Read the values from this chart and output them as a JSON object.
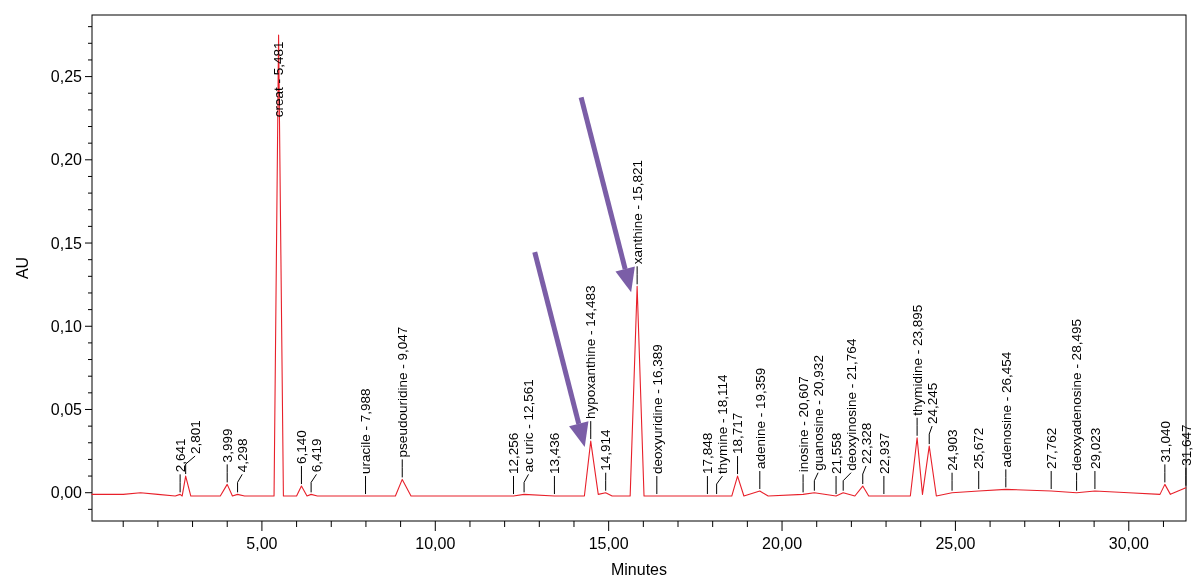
{
  "chart_data": {
    "type": "line",
    "xlabel": "Minutes",
    "ylabel": "AU",
    "xlim": [
      0.1,
      31.65
    ],
    "ylim": [
      -0.017,
      0.287
    ],
    "xticks": [
      {
        "value": 1,
        "label": null
      },
      {
        "value": 2,
        "label": null
      },
      {
        "value": 3,
        "label": null
      },
      {
        "value": 4,
        "label": null
      },
      {
        "value": 5,
        "label": "5,00"
      },
      {
        "value": 6,
        "label": null
      },
      {
        "value": 7,
        "label": null
      },
      {
        "value": 8,
        "label": null
      },
      {
        "value": 9,
        "label": null
      },
      {
        "value": 10,
        "label": "10,00"
      },
      {
        "value": 11,
        "label": null
      },
      {
        "value": 12,
        "label": null
      },
      {
        "value": 13,
        "label": null
      },
      {
        "value": 14,
        "label": null
      },
      {
        "value": 15,
        "label": "15,00"
      },
      {
        "value": 16,
        "label": null
      },
      {
        "value": 17,
        "label": null
      },
      {
        "value": 18,
        "label": null
      },
      {
        "value": 19,
        "label": null
      },
      {
        "value": 20,
        "label": "20,00"
      },
      {
        "value": 21,
        "label": null
      },
      {
        "value": 22,
        "label": null
      },
      {
        "value": 23,
        "label": null
      },
      {
        "value": 24,
        "label": null
      },
      {
        "value": 25,
        "label": "25,00"
      },
      {
        "value": 26,
        "label": null
      },
      {
        "value": 27,
        "label": null
      },
      {
        "value": 28,
        "label": null
      },
      {
        "value": 29,
        "label": null
      },
      {
        "value": 30,
        "label": "30,00"
      },
      {
        "value": 31,
        "label": null
      }
    ],
    "yticks": [
      {
        "value": -0.01,
        "label": null
      },
      {
        "value": 0,
        "label": "0,00"
      },
      {
        "value": 0.01,
        "label": null
      },
      {
        "value": 0.02,
        "label": null
      },
      {
        "value": 0.03,
        "label": null
      },
      {
        "value": 0.04,
        "label": null
      },
      {
        "value": 0.05,
        "label": "0,05"
      },
      {
        "value": 0.06,
        "label": null
      },
      {
        "value": 0.07,
        "label": null
      },
      {
        "value": 0.08,
        "label": null
      },
      {
        "value": 0.09,
        "label": null
      },
      {
        "value": 0.1,
        "label": "0,10"
      },
      {
        "value": 0.11,
        "label": null
      },
      {
        "value": 0.12,
        "label": null
      },
      {
        "value": 0.13,
        "label": null
      },
      {
        "value": 0.14,
        "label": null
      },
      {
        "value": 0.15,
        "label": "0,15"
      },
      {
        "value": 0.16,
        "label": null
      },
      {
        "value": 0.17,
        "label": null
      },
      {
        "value": 0.18,
        "label": null
      },
      {
        "value": 0.19,
        "label": null
      },
      {
        "value": 0.2,
        "label": "0,20"
      },
      {
        "value": 0.21,
        "label": null
      },
      {
        "value": 0.22,
        "label": null
      },
      {
        "value": 0.23,
        "label": null
      },
      {
        "value": 0.24,
        "label": null
      },
      {
        "value": 0.25,
        "label": "0,25"
      },
      {
        "value": 0.26,
        "label": null
      },
      {
        "value": 0.27,
        "label": null
      },
      {
        "value": 0.28,
        "label": null
      }
    ],
    "grid": false,
    "marker": "none",
    "line_style": "solid",
    "series": [
      {
        "color": "#e8202a",
        "x": [
          0.1,
          1.0,
          1.5,
          2.0,
          2.5,
          2.641,
          2.7,
          2.801,
          2.95,
          3.8,
          3.999,
          4.15,
          4.298,
          4.5,
          5.35,
          5.481,
          5.62,
          6.0,
          6.14,
          6.3,
          6.419,
          6.6,
          7.988,
          8.85,
          9.047,
          9.3,
          12.256,
          12.561,
          13.436,
          14.3,
          14.483,
          14.7,
          14.914,
          15.1,
          15.62,
          15.821,
          16.02,
          16.389,
          17.848,
          18.114,
          18.55,
          18.717,
          18.9,
          19.359,
          19.6,
          20.607,
          20.932,
          21.558,
          21.764,
          22.1,
          22.328,
          22.5,
          22.937,
          23.7,
          23.895,
          24.05,
          24.245,
          24.45,
          24.903,
          25.672,
          26.454,
          27.762,
          28.495,
          29.023,
          30.0,
          30.9,
          31.04,
          31.2,
          31.647
        ],
        "values": [
          -0.001,
          -0.001,
          0.0,
          -0.001,
          -0.002,
          -0.001,
          -0.002,
          0.01,
          -0.002,
          -0.002,
          0.005,
          -0.002,
          -0.001,
          -0.002,
          -0.002,
          0.275,
          -0.002,
          -0.002,
          0.004,
          -0.002,
          -0.001,
          -0.002,
          -0.002,
          -0.002,
          0.008,
          -0.002,
          -0.002,
          -0.001,
          -0.002,
          -0.002,
          0.031,
          -0.001,
          0.0,
          -0.002,
          -0.002,
          0.124,
          -0.002,
          -0.002,
          -0.002,
          -0.002,
          -0.002,
          0.01,
          -0.002,
          0.001,
          -0.002,
          -0.001,
          0.0,
          -0.002,
          0.0,
          -0.002,
          0.004,
          -0.002,
          -0.002,
          -0.002,
          0.033,
          -0.001,
          0.028,
          -0.002,
          0.0,
          0.001,
          0.002,
          0.001,
          0.0,
          0.001,
          0.0,
          -0.001,
          0.005,
          -0.001,
          0.003
        ]
      }
    ],
    "annotations": [
      {
        "text": "2,641",
        "x": 2.641,
        "y": -0.001
      },
      {
        "text": "2,801",
        "x": 2.801,
        "y": 0.01
      },
      {
        "text": "3,999",
        "x": 3.999,
        "y": 0.005
      },
      {
        "text": "4,298",
        "x": 4.298,
        "y": -0.001
      },
      {
        "text": "creat - 5,481",
        "x": 5.481,
        "y": 0.275
      },
      {
        "text": "6,140",
        "x": 6.14,
        "y": 0.004
      },
      {
        "text": "6,419",
        "x": 6.419,
        "y": -0.001
      },
      {
        "text": "uracile - 7,988",
        "x": 7.988,
        "y": -0.002
      },
      {
        "text": "pseudouridine - 9,047",
        "x": 9.047,
        "y": 0.008
      },
      {
        "text": "12,256",
        "x": 12.256,
        "y": -0.002
      },
      {
        "text": "ac uric - 12,561",
        "x": 12.561,
        "y": -0.001
      },
      {
        "text": "13,436",
        "x": 13.436,
        "y": -0.002
      },
      {
        "text": "hypoxanthine - 14,483",
        "x": 14.483,
        "y": 0.031
      },
      {
        "text": "14,914",
        "x": 14.914,
        "y": 0.0
      },
      {
        "text": "xanthine - 15,821",
        "x": 15.821,
        "y": 0.124
      },
      {
        "text": "deoxyuridine - 16,389",
        "x": 16.389,
        "y": -0.002
      },
      {
        "text": "17,848",
        "x": 17.848,
        "y": -0.002
      },
      {
        "text": "thymine - 18,114",
        "x": 18.114,
        "y": -0.002
      },
      {
        "text": "18,717",
        "x": 18.717,
        "y": 0.01
      },
      {
        "text": "adenine - 19,359",
        "x": 19.359,
        "y": 0.001
      },
      {
        "text": "inosine - 20,607",
        "x": 20.607,
        "y": -0.001
      },
      {
        "text": "guanosine - 20,932",
        "x": 20.932,
        "y": 0.0
      },
      {
        "text": "21,558",
        "x": 21.558,
        "y": -0.002
      },
      {
        "text": "deoxyinosine - 21,764",
        "x": 21.764,
        "y": 0.0
      },
      {
        "text": "22,328",
        "x": 22.328,
        "y": 0.004
      },
      {
        "text": "22,937",
        "x": 22.937,
        "y": -0.002
      },
      {
        "text": "thymidine - 23,895",
        "x": 23.895,
        "y": 0.033
      },
      {
        "text": "24,245",
        "x": 24.245,
        "y": 0.028
      },
      {
        "text": "24,903",
        "x": 24.903,
        "y": 0.0
      },
      {
        "text": "25,672",
        "x": 25.672,
        "y": 0.001
      },
      {
        "text": "adenosine - 26,454",
        "x": 26.454,
        "y": 0.002
      },
      {
        "text": "27,762",
        "x": 27.762,
        "y": 0.001
      },
      {
        "text": "deoxyadenosine - 28,495",
        "x": 28.495,
        "y": 0.0
      },
      {
        "text": "29,023",
        "x": 29.023,
        "y": 0.001
      },
      {
        "text": "31,040",
        "x": 31.04,
        "y": 0.005
      },
      {
        "text": "31,647",
        "x": 31.647,
        "y": 0.003
      }
    ]
  }
}
